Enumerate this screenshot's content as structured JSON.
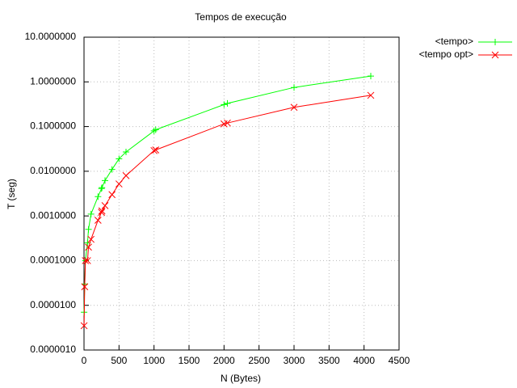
{
  "chart_data": {
    "type": "line",
    "title": "Tempos de execução",
    "xlabel": "N (Bytes)",
    "ylabel": "T (seg)",
    "log_y": true,
    "grid": true,
    "legend": "outside-top-right",
    "xlim": [
      0,
      4500
    ],
    "xticks": [
      0,
      500,
      1000,
      1500,
      2000,
      2500,
      3000,
      3500,
      4000,
      4500
    ],
    "ylim": [
      1e-06,
      10
    ],
    "yticks": [
      {
        "value": 1e-06,
        "label": "0.0000010"
      },
      {
        "value": 1e-05,
        "label": "0.0000100"
      },
      {
        "value": 0.0001,
        "label": "0.0001000"
      },
      {
        "value": 0.001,
        "label": "0.0010000"
      },
      {
        "value": 0.01,
        "label": "0.0100000"
      },
      {
        "value": 0.1,
        "label": "0.1000000"
      },
      {
        "value": 1,
        "label": "1.0000000"
      },
      {
        "value": 10,
        "label": "10.0000000"
      }
    ],
    "x": [
      1,
      10,
      20,
      50,
      64,
      100,
      200,
      250,
      256,
      300,
      400,
      500,
      600,
      1000,
      1024,
      2000,
      2048,
      3000,
      4096
    ],
    "series": [
      {
        "name": "<tempo>",
        "color": "#00ff00",
        "marker": "plus",
        "values": [
          7e-06,
          3e-05,
          0.0001,
          0.00025,
          0.0005,
          0.0011,
          0.0027,
          0.0041,
          0.0043,
          0.0062,
          0.011,
          0.019,
          0.027,
          0.08,
          0.085,
          0.31,
          0.33,
          0.75,
          1.35
        ]
      },
      {
        "name": "<tempo opt>",
        "color": "#ff0000",
        "marker": "cross",
        "values": [
          3.5e-06,
          2.6e-05,
          0.0001,
          0.0001,
          0.0002,
          0.0003,
          0.0008,
          0.0012,
          0.0013,
          0.0017,
          0.003,
          0.0052,
          0.008,
          0.029,
          0.03,
          0.115,
          0.12,
          0.27,
          0.5
        ]
      }
    ]
  }
}
